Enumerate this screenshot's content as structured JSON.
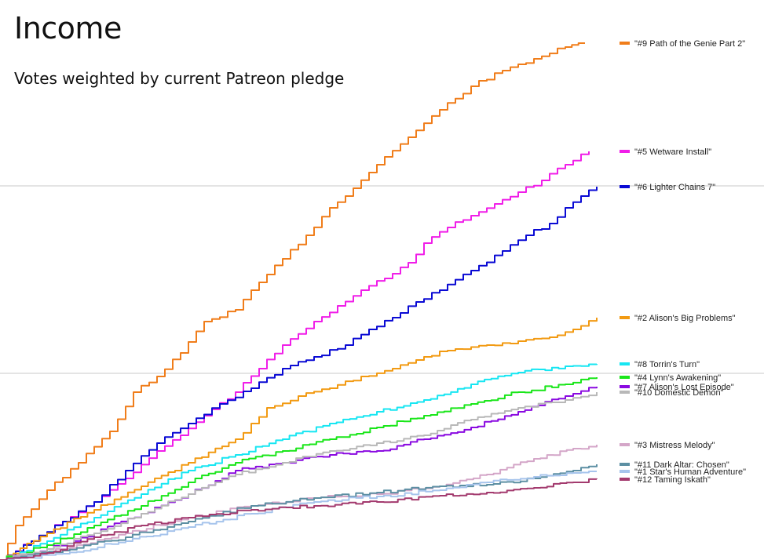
{
  "chart_data": {
    "type": "line",
    "title": "Income",
    "subtitle": "Votes weighted by current Patreon pledge",
    "xlabel": "",
    "ylabel": "",
    "grid": "two horizontal reference lines",
    "legend_placement": "right, at line ends",
    "series": [
      {
        "name": "\"#9 Path of the Genie Part 2\"",
        "color": "#f07d1a",
        "end_y": 55,
        "points": [
          [
            0,
            714
          ],
          [
            20,
            670
          ],
          [
            60,
            625
          ],
          [
            100,
            590
          ],
          [
            140,
            550
          ],
          [
            170,
            500
          ],
          [
            200,
            480
          ],
          [
            230,
            450
          ],
          [
            260,
            410
          ],
          [
            300,
            395
          ],
          [
            330,
            360
          ],
          [
            360,
            330
          ],
          [
            390,
            300
          ],
          [
            420,
            265
          ],
          [
            450,
            240
          ],
          [
            470,
            220
          ],
          [
            490,
            200
          ],
          [
            520,
            175
          ],
          [
            560,
            140
          ],
          [
            600,
            110
          ],
          [
            640,
            90
          ],
          [
            680,
            75
          ],
          [
            720,
            60
          ],
          [
            745,
            55
          ]
        ]
      },
      {
        "name": "\"#5 Wetware Install\"",
        "color": "#f01ee8",
        "end_y": 193,
        "points": [
          [
            0,
            714
          ],
          [
            40,
            690
          ],
          [
            80,
            665
          ],
          [
            120,
            640
          ],
          [
            160,
            610
          ],
          [
            200,
            575
          ],
          [
            230,
            555
          ],
          [
            260,
            530
          ],
          [
            300,
            500
          ],
          [
            330,
            470
          ],
          [
            360,
            440
          ],
          [
            400,
            410
          ],
          [
            430,
            390
          ],
          [
            460,
            370
          ],
          [
            490,
            355
          ],
          [
            520,
            335
          ],
          [
            540,
            310
          ],
          [
            570,
            290
          ],
          [
            600,
            275
          ],
          [
            630,
            260
          ],
          [
            660,
            245
          ],
          [
            690,
            230
          ],
          [
            720,
            210
          ],
          [
            750,
            193
          ]
        ]
      },
      {
        "name": "\"#6 Lighter Chains 7\"",
        "color": "#0a0ad4",
        "end_y": 238,
        "points": [
          [
            0,
            714
          ],
          [
            40,
            690
          ],
          [
            80,
            665
          ],
          [
            120,
            640
          ],
          [
            160,
            600
          ],
          [
            200,
            565
          ],
          [
            240,
            540
          ],
          [
            280,
            515
          ],
          [
            320,
            495
          ],
          [
            360,
            470
          ],
          [
            400,
            455
          ],
          [
            440,
            440
          ],
          [
            470,
            420
          ],
          [
            500,
            405
          ],
          [
            530,
            385
          ],
          [
            560,
            370
          ],
          [
            600,
            345
          ],
          [
            640,
            320
          ],
          [
            670,
            300
          ],
          [
            700,
            285
          ],
          [
            720,
            265
          ],
          [
            740,
            250
          ],
          [
            760,
            238
          ]
        ]
      },
      {
        "name": "\"#2 Alison's Big Problems\"",
        "color": "#f29a12",
        "end_y": 405,
        "points": [
          [
            0,
            714
          ],
          [
            60,
            680
          ],
          [
            120,
            650
          ],
          [
            180,
            620
          ],
          [
            240,
            590
          ],
          [
            300,
            560
          ],
          [
            340,
            520
          ],
          [
            380,
            505
          ],
          [
            420,
            495
          ],
          [
            460,
            480
          ],
          [
            500,
            470
          ],
          [
            540,
            455
          ],
          [
            580,
            445
          ],
          [
            620,
            440
          ],
          [
            660,
            435
          ],
          [
            700,
            430
          ],
          [
            730,
            420
          ],
          [
            760,
            405
          ]
        ]
      },
      {
        "name": "\"#8 Torrin's Turn\"",
        "color": "#17e6f2",
        "end_y": 464,
        "points": [
          [
            0,
            714
          ],
          [
            60,
            690
          ],
          [
            120,
            660
          ],
          [
            180,
            630
          ],
          [
            240,
            600
          ],
          [
            300,
            580
          ],
          [
            360,
            560
          ],
          [
            420,
            540
          ],
          [
            480,
            525
          ],
          [
            540,
            510
          ],
          [
            600,
            490
          ],
          [
            660,
            475
          ],
          [
            720,
            467
          ],
          [
            760,
            464
          ]
        ]
      },
      {
        "name": "\"#4 Lynn's Awakening\"",
        "color": "#19e619",
        "end_y": 481,
        "points": [
          [
            0,
            714
          ],
          [
            60,
            695
          ],
          [
            120,
            670
          ],
          [
            180,
            645
          ],
          [
            240,
            615
          ],
          [
            300,
            590
          ],
          [
            360,
            575
          ],
          [
            420,
            560
          ],
          [
            480,
            545
          ],
          [
            540,
            530
          ],
          [
            600,
            515
          ],
          [
            660,
            500
          ],
          [
            720,
            490
          ],
          [
            760,
            481
          ]
        ]
      },
      {
        "name": "\"#7 Alison's Lost Episode\"",
        "color": "#8a0ae0",
        "end_y": 493,
        "points": [
          [
            0,
            714
          ],
          [
            60,
            700
          ],
          [
            120,
            680
          ],
          [
            180,
            655
          ],
          [
            240,
            630
          ],
          [
            300,
            600
          ],
          [
            360,
            590
          ],
          [
            420,
            580
          ],
          [
            480,
            575
          ],
          [
            540,
            560
          ],
          [
            600,
            545
          ],
          [
            660,
            525
          ],
          [
            720,
            505
          ],
          [
            760,
            493
          ]
        ]
      },
      {
        "name": "\"#10 Domestic Demon\"",
        "color": "#b8b8b8",
        "end_y": 500,
        "points": [
          [
            0,
            714
          ],
          [
            60,
            700
          ],
          [
            120,
            680
          ],
          [
            180,
            655
          ],
          [
            240,
            630
          ],
          [
            300,
            605
          ],
          [
            360,
            590
          ],
          [
            420,
            575
          ],
          [
            480,
            565
          ],
          [
            540,
            555
          ],
          [
            600,
            535
          ],
          [
            660,
            520
          ],
          [
            720,
            510
          ],
          [
            760,
            500
          ]
        ]
      },
      {
        "name": "\"#3 Mistress Melody\"",
        "color": "#d4a6c8",
        "end_y": 567,
        "points": [
          [
            0,
            714
          ],
          [
            80,
            700
          ],
          [
            160,
            680
          ],
          [
            240,
            660
          ],
          [
            320,
            645
          ],
          [
            400,
            635
          ],
          [
            480,
            630
          ],
          [
            560,
            620
          ],
          [
            620,
            605
          ],
          [
            680,
            585
          ],
          [
            730,
            572
          ],
          [
            760,
            567
          ]
        ]
      },
      {
        "name": "\"#11 Dark Altar: Chosen\"",
        "color": "#5c8fa3",
        "end_y": 592,
        "points": [
          [
            0,
            714
          ],
          [
            80,
            702
          ],
          [
            160,
            685
          ],
          [
            240,
            665
          ],
          [
            320,
            645
          ],
          [
            400,
            635
          ],
          [
            480,
            628
          ],
          [
            560,
            620
          ],
          [
            620,
            618
          ],
          [
            680,
            610
          ],
          [
            730,
            600
          ],
          [
            760,
            592
          ]
        ]
      },
      {
        "name": "\"#1 Star's Human Adventure\"",
        "color": "#a6c4ec",
        "end_y": 601,
        "points": [
          [
            0,
            714
          ],
          [
            80,
            706
          ],
          [
            160,
            690
          ],
          [
            240,
            672
          ],
          [
            320,
            655
          ],
          [
            400,
            640
          ],
          [
            480,
            633
          ],
          [
            560,
            625
          ],
          [
            620,
            615
          ],
          [
            680,
            608
          ],
          [
            730,
            603
          ],
          [
            760,
            601
          ]
        ]
      },
      {
        "name": "\"#12 Taming Iskath\"",
        "color": "#a33a6e",
        "end_y": 611,
        "points": [
          [
            0,
            714
          ],
          [
            60,
            705
          ],
          [
            120,
            685
          ],
          [
            180,
            670
          ],
          [
            240,
            660
          ],
          [
            320,
            650
          ],
          [
            400,
            645
          ],
          [
            480,
            640
          ],
          [
            560,
            632
          ],
          [
            620,
            628
          ],
          [
            680,
            622
          ],
          [
            730,
            615
          ],
          [
            760,
            611
          ]
        ]
      }
    ]
  }
}
